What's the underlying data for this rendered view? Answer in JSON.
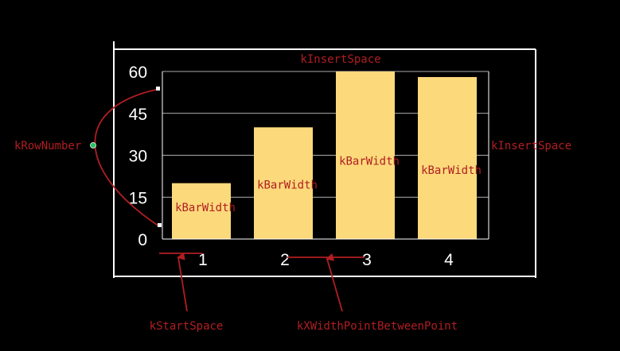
{
  "colors": {
    "background": "#000000",
    "frame": "#ffffff",
    "axis": "#ffffff",
    "grid": "#e6e6e6",
    "bar": "#fcd97a",
    "annotation": "#b01e22",
    "tick_text": "#ffffff",
    "marker": "#22c55e"
  },
  "chart_data": {
    "type": "bar",
    "categories": [
      "1",
      "2",
      "3",
      "4"
    ],
    "values": [
      20,
      40,
      60,
      58
    ],
    "ylim": [
      0,
      60
    ],
    "y_ticks": [
      "0",
      "15",
      "30",
      "45",
      "60"
    ],
    "grid": true,
    "xlabel": "",
    "ylabel": "",
    "title": ""
  },
  "annotations": {
    "insert_space_top": "kInsertSpace",
    "insert_space_right": "kInsertSpace",
    "row_number": "kRowNumber",
    "start_space": "kStartSpace",
    "x_width_between": "kXWidthPointBetweenPoint",
    "bar_width": [
      "kBarWidth",
      "kBarWidth",
      "kBarWidth",
      "kBarWidth"
    ]
  }
}
